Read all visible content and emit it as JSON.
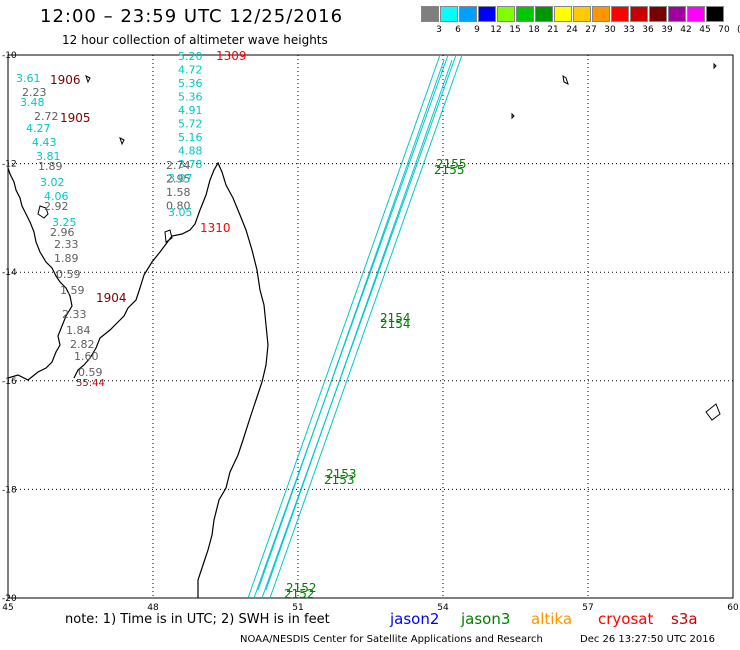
{
  "title": "12:00 – 23:59 UTC 12/25/2016",
  "subtitle": "12 hour collection of altimeter wave heights",
  "note": "note: 1) Time is in UTC; 2) SWH is in feet",
  "credit": "NOAA/NESDIS Center for Satellite Applications and Research",
  "timestamp": "Dec 26 13:27:50 UTC 2016",
  "legend": {
    "labels": [
      "3",
      "6",
      "9",
      "12",
      "15",
      "18",
      "21",
      "24",
      "27",
      "30",
      "33",
      "36",
      "39",
      "42",
      "45",
      "70"
    ],
    "colors": [
      "#7f7f7f",
      "#00ffff",
      "#00a0ff",
      "#0000ff",
      "#80ff00",
      "#00c800",
      "#009600",
      "#ffff00",
      "#ffc800",
      "#ff9600",
      "#ff0000",
      "#c80000",
      "#780000",
      "#a000a0",
      "#ff00ff",
      "#000000"
    ],
    "unit": "(ft)"
  },
  "satellites": [
    {
      "name": "jason2",
      "color": "#0000ff"
    },
    {
      "name": "jason3",
      "color": "#008000"
    },
    {
      "name": "altika",
      "color": "#ff9600"
    },
    {
      "name": "cryosat",
      "color": "#ff0000"
    },
    {
      "name": "s3a",
      "color": "#c80000"
    }
  ],
  "axes": {
    "lon_ticks": [
      "45",
      "48",
      "51",
      "54",
      "57",
      "60"
    ],
    "lat_ticks": [
      "-10",
      "-12",
      "-14",
      "-16",
      "-18",
      "-20"
    ]
  },
  "time_labels": [
    {
      "text": "1309",
      "color": "#ff0000"
    },
    {
      "text": "1906",
      "color": "#800000"
    },
    {
      "text": "1905",
      "color": "#800000"
    },
    {
      "text": "1310",
      "color": "#ff0000"
    },
    {
      "text": "1904",
      "color": "#800000"
    },
    {
      "text": "55:44",
      "color": "#c80000"
    },
    {
      "text": "2155",
      "color": "#008000"
    },
    {
      "text": "2155",
      "color": "#008000"
    },
    {
      "text": "2154",
      "color": "#008000"
    },
    {
      "text": "2154",
      "color": "#008000"
    },
    {
      "text": "2153",
      "color": "#008000"
    },
    {
      "text": "2153",
      "color": "#008000"
    },
    {
      "text": "2152",
      "color": "#008000"
    },
    {
      "text": "2152",
      "color": "#008000"
    }
  ],
  "swh_columns": [
    {
      "color": "#00c8c8",
      "values": [
        "5.20",
        "4.72",
        "5.36",
        "5.36",
        "4.91",
        "5.72",
        "5.16",
        "4.88",
        "3.78"
      ]
    },
    {
      "color": "#00c8c8",
      "values": [
        "3.61",
        "3.48",
        "4.27",
        "4.43",
        "3.81",
        "3.02",
        "4.06",
        "3.25"
      ]
    },
    {
      "color": "#606060",
      "values": [
        "2.23",
        "2.72",
        "1.89",
        "2.92",
        "2.96",
        "2.33",
        "1.89",
        "0.59",
        "1.59",
        "2.33",
        "1.84",
        "2.82",
        "1.60",
        "0.59"
      ]
    },
    {
      "color": "#606060",
      "values": [
        "2.74",
        "2.95",
        "1.58",
        "0.80"
      ]
    },
    {
      "color": "#00c8c8",
      "values": [
        "3.07",
        "3.05"
      ]
    }
  ]
}
